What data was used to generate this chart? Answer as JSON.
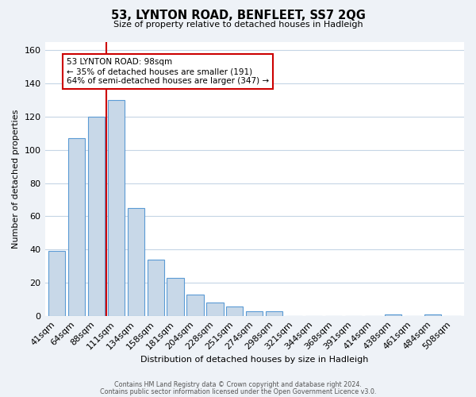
{
  "title": "53, LYNTON ROAD, BENFLEET, SS7 2QG",
  "subtitle": "Size of property relative to detached houses in Hadleigh",
  "xlabel": "Distribution of detached houses by size in Hadleigh",
  "ylabel": "Number of detached properties",
  "bar_labels": [
    "41sqm",
    "64sqm",
    "88sqm",
    "111sqm",
    "134sqm",
    "158sqm",
    "181sqm",
    "204sqm",
    "228sqm",
    "251sqm",
    "274sqm",
    "298sqm",
    "321sqm",
    "344sqm",
    "368sqm",
    "391sqm",
    "414sqm",
    "438sqm",
    "461sqm",
    "484sqm",
    "508sqm"
  ],
  "bar_values": [
    39,
    107,
    120,
    130,
    65,
    34,
    23,
    13,
    8,
    6,
    3,
    3,
    0,
    0,
    0,
    0,
    0,
    1,
    0,
    1,
    0
  ],
  "bar_color": "#c8d8e8",
  "bar_edge_color": "#5b9bd5",
  "vline_x": 2.5,
  "vline_color": "#cc0000",
  "annotation_text": "53 LYNTON ROAD: 98sqm\n← 35% of detached houses are smaller (191)\n64% of semi-detached houses are larger (347) →",
  "ylim": [
    0,
    165
  ],
  "yticks": [
    0,
    20,
    40,
    60,
    80,
    100,
    120,
    140,
    160
  ],
  "footer1": "Contains HM Land Registry data © Crown copyright and database right 2024.",
  "footer2": "Contains public sector information licensed under the Open Government Licence v3.0.",
  "background_color": "#eef2f7",
  "plot_background": "#ffffff",
  "grid_color": "#c5d5e5"
}
